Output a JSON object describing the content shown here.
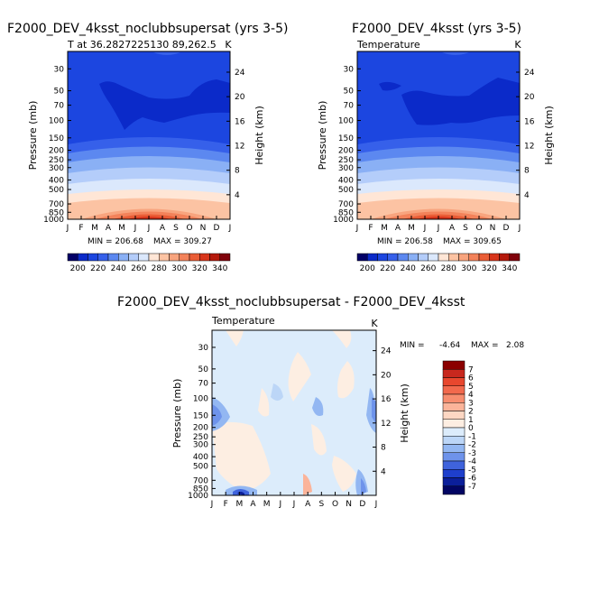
{
  "chart_data": [
    {
      "type": "heatmap",
      "title": "F2000_DEV_4ksst_noclubbsupersat (yrs 3-5)",
      "subtitle_left": "T at 36.2827225130 89,262.5",
      "units": "K",
      "xlabel": "",
      "ylabel": "Pressure (mb)",
      "ylabel_right": "Height (km)",
      "x_tick_labels": [
        "J",
        "F",
        "M",
        "A",
        "M",
        "J",
        "J",
        "A",
        "S",
        "O",
        "N",
        "D",
        "J"
      ],
      "y_ticks": [
        30,
        50,
        70,
        100,
        150,
        200,
        250,
        300,
        400,
        500,
        700,
        850,
        1000
      ],
      "y_right_ticks": [
        24,
        20,
        16,
        12,
        8,
        4
      ],
      "ylim": [
        1000,
        20
      ],
      "min_label": "MIN = 206.68",
      "max_label": "MAX = 309.27",
      "colorbar_levels": [
        200,
        220,
        240,
        260,
        280,
        300,
        320,
        340
      ],
      "colorbar_colors": [
        "#030067",
        "#0b2ac9",
        "#1c46e0",
        "#3660ea",
        "#5c88f0",
        "#8ab0f5",
        "#b4cdfa",
        "#dbe8fc",
        "#ffe6d6",
        "#fcc3a3",
        "#f8a47e",
        "#f3825a",
        "#ea5d36",
        "#d8351b",
        "#b5190c",
        "#80020b"
      ]
    },
    {
      "type": "heatmap",
      "title": "F2000_DEV_4ksst (yrs 3-5)",
      "subtitle_left": "Temperature",
      "units": "K",
      "ylabel": "Pressure (mb)",
      "ylabel_right": "Height (km)",
      "x_tick_labels": [
        "J",
        "F",
        "M",
        "A",
        "M",
        "J",
        "J",
        "A",
        "S",
        "O",
        "N",
        "D",
        "J"
      ],
      "y_ticks": [
        30,
        50,
        70,
        100,
        150,
        200,
        250,
        300,
        400,
        500,
        700,
        850,
        1000
      ],
      "y_right_ticks": [
        24,
        20,
        16,
        12,
        8,
        4
      ],
      "ylim": [
        1000,
        20
      ],
      "min_label": "MIN = 206.58",
      "max_label": "MAX = 309.65",
      "colorbar_levels": [
        200,
        220,
        240,
        260,
        280,
        300,
        320,
        340
      ]
    },
    {
      "type": "heatmap",
      "title": "F2000_DEV_4ksst_noclubbsupersat - F2000_DEV_4ksst",
      "subtitle_left": "Temperature",
      "units": "K",
      "ylabel": "Pressure (mb)",
      "ylabel_right": "Height (km)",
      "x_tick_labels": [
        "J",
        "F",
        "M",
        "A",
        "M",
        "J",
        "J",
        "A",
        "S",
        "O",
        "N",
        "D",
        "J"
      ],
      "y_ticks": [
        30,
        50,
        70,
        100,
        150,
        200,
        250,
        300,
        400,
        500,
        700,
        850,
        1000
      ],
      "y_right_ticks": [
        24,
        20,
        16,
        12,
        8,
        4
      ],
      "ylim": [
        1000,
        20
      ],
      "min_label": "MIN =",
      "min_value": "-4.64",
      "max_label": "MAX =",
      "max_value": "2.08",
      "colorbar_levels": [
        7,
        6,
        5,
        4,
        3,
        2,
        1,
        0,
        -1,
        -2,
        -3,
        -4,
        -5,
        -6,
        -7
      ],
      "colorbar_colors": [
        "#8b0000",
        "#c8281e",
        "#e8472e",
        "#f2694d",
        "#f78d6f",
        "#fbb49a",
        "#fdd7c3",
        "#fdeee2",
        "#dcecfb",
        "#bcd6f7",
        "#93b7f2",
        "#6e93eb",
        "#3f63dc",
        "#1e3fcc",
        "#0b1f9a",
        "#020563"
      ]
    }
  ]
}
